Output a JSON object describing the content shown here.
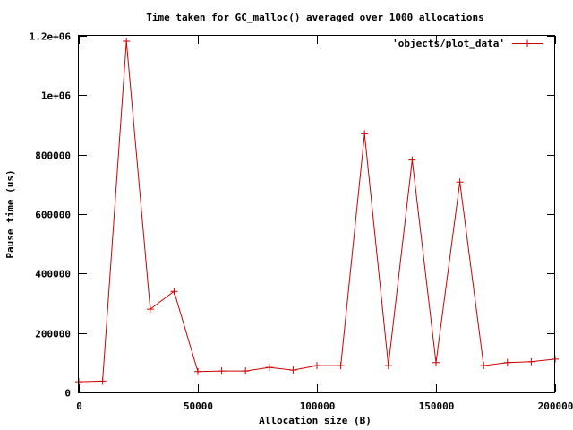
{
  "chart_data": {
    "type": "line",
    "title": "Time taken for GC_malloc() averaged over 1000 allocations",
    "xlabel": "Allocation size (B)",
    "ylabel": "Pause time (us)",
    "xlim": [
      0,
      200000
    ],
    "ylim": [
      0,
      1200000
    ],
    "x_ticks": [
      0,
      50000,
      100000,
      150000,
      200000
    ],
    "x_tick_labels": [
      "0",
      "50000",
      "100000",
      "150000",
      "200000"
    ],
    "y_ticks": [
      0,
      200000,
      400000,
      600000,
      800000,
      1000000,
      1200000
    ],
    "y_tick_labels": [
      "0",
      "200000",
      "400000",
      "600000",
      "800000",
      "1e+06",
      "1.2e+06"
    ],
    "grid": false,
    "legend_position": "top-right",
    "series": [
      {
        "name": "'objects/plot_data'",
        "color": "#cc0000",
        "marker": "plus",
        "x": [
          0,
          10000,
          20000,
          30000,
          40000,
          50000,
          60000,
          70000,
          80000,
          90000,
          100000,
          110000,
          120000,
          130000,
          140000,
          150000,
          160000,
          170000,
          180000,
          190000,
          200000
        ],
        "y": [
          36000,
          38000,
          1182000,
          280000,
          340000,
          70000,
          72000,
          72000,
          84000,
          75000,
          90000,
          90000,
          870000,
          90000,
          782000,
          100000,
          708000,
          90000,
          100000,
          103000,
          112000
        ]
      }
    ]
  }
}
